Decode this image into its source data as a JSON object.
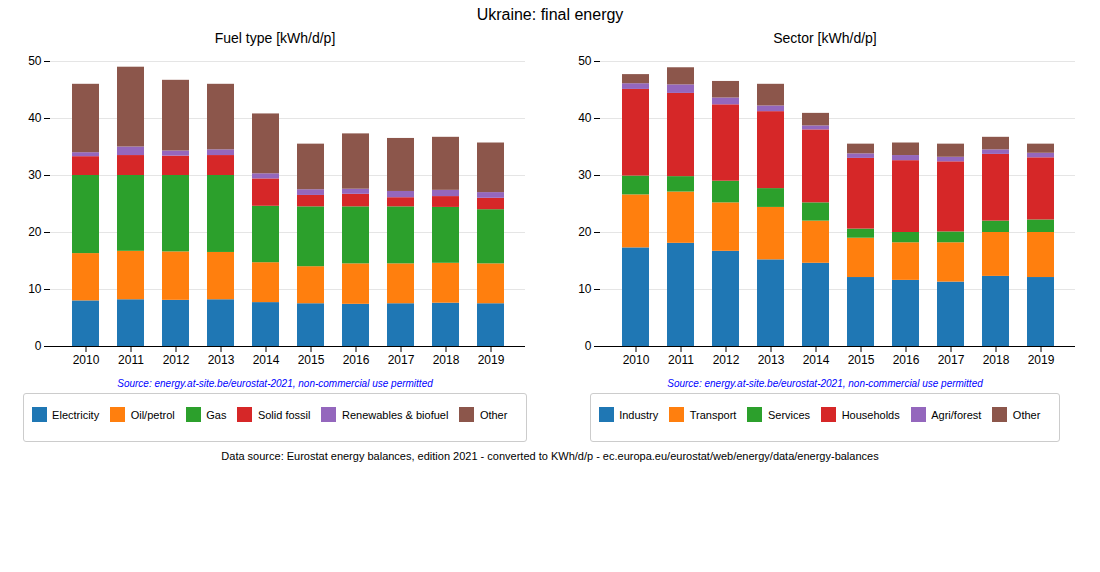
{
  "title": "Ukraine: final energy",
  "annotations": [
    "Data source: Eurostat energy balances, edition 2021 - converted to KWh/d/p - ec.europa.eu/eurostat/web/energy/data/energy-balances"
  ],
  "chart_data": [
    {
      "type": "bar",
      "title": "Fuel type [kWh/d/p]",
      "stacked": true,
      "grid": true,
      "legend": "bottom",
      "categories": [
        "2010",
        "2011",
        "2012",
        "2013",
        "2014",
        "2015",
        "2016",
        "2017",
        "2018",
        "2019"
      ],
      "series": [
        {
          "name": "Electricity",
          "color": "#1f77b4",
          "values": [
            8.0,
            8.2,
            8.1,
            8.2,
            7.7,
            7.5,
            7.4,
            7.5,
            7.6,
            7.5
          ]
        },
        {
          "name": "Oil/petrol",
          "color": "#ff7f0e",
          "values": [
            8.3,
            8.5,
            8.5,
            8.3,
            7.0,
            6.5,
            7.1,
            7.0,
            7.0,
            7.0
          ]
        },
        {
          "name": "Gas",
          "color": "#2ca02c",
          "values": [
            13.7,
            13.3,
            13.4,
            13.5,
            9.9,
            10.5,
            10.0,
            10.0,
            9.8,
            9.5
          ]
        },
        {
          "name": "Solid fossil",
          "color": "#d62728",
          "values": [
            3.3,
            3.5,
            3.4,
            3.5,
            4.8,
            2.0,
            2.2,
            1.6,
            1.9,
            2.0
          ]
        },
        {
          "name": "Renewables & biofuel",
          "color": "#9467bd",
          "values": [
            0.7,
            1.5,
            0.9,
            1.0,
            0.9,
            1.0,
            0.9,
            1.1,
            1.1,
            1.0
          ]
        },
        {
          "name": "Other",
          "color": "#8c564b",
          "values": [
            12.0,
            14.0,
            12.4,
            11.5,
            10.5,
            8.0,
            9.7,
            9.3,
            9.3,
            8.7
          ]
        }
      ],
      "ylim": [
        0,
        50
      ],
      "yticks": [
        0,
        10,
        20,
        30,
        40,
        50
      ],
      "annotations": [
        "Source: energy.at-site.be/eurostat-2021, non-commercial use permitted"
      ]
    },
    {
      "type": "bar",
      "title": "Sector [kWh/d/p]",
      "stacked": true,
      "grid": true,
      "legend": "bottom",
      "categories": [
        "2010",
        "2011",
        "2012",
        "2013",
        "2014",
        "2015",
        "2016",
        "2017",
        "2018",
        "2019"
      ],
      "series": [
        {
          "name": "Industry",
          "color": "#1f77b4",
          "values": [
            17.3,
            18.1,
            16.7,
            15.2,
            14.6,
            12.1,
            11.6,
            11.3,
            12.3,
            12.1
          ]
        },
        {
          "name": "Transport",
          "color": "#ff7f0e",
          "values": [
            9.3,
            9.0,
            8.5,
            9.2,
            7.4,
            6.9,
            6.6,
            6.9,
            7.7,
            7.9
          ]
        },
        {
          "name": "Services",
          "color": "#2ca02c",
          "values": [
            3.3,
            2.7,
            3.8,
            3.3,
            3.2,
            1.6,
            1.8,
            1.9,
            2.0,
            2.2
          ]
        },
        {
          "name": "Households",
          "color": "#d62728",
          "values": [
            15.2,
            14.6,
            13.4,
            13.5,
            12.8,
            12.4,
            12.6,
            12.3,
            11.7,
            10.9
          ]
        },
        {
          "name": "Agri/forest",
          "color": "#9467bd",
          "values": [
            1.0,
            1.5,
            1.2,
            1.0,
            0.7,
            0.8,
            0.9,
            0.8,
            0.8,
            0.8
          ]
        },
        {
          "name": "Other",
          "color": "#8c564b",
          "values": [
            1.6,
            3.0,
            2.9,
            3.8,
            2.2,
            1.7,
            2.2,
            2.3,
            2.2,
            1.6
          ]
        }
      ],
      "ylim": [
        0,
        50
      ],
      "yticks": [
        0,
        10,
        20,
        30,
        40,
        50
      ],
      "annotations": [
        "Source: energy.at-site.be/eurostat-2021, non-commercial use permitted"
      ]
    }
  ]
}
